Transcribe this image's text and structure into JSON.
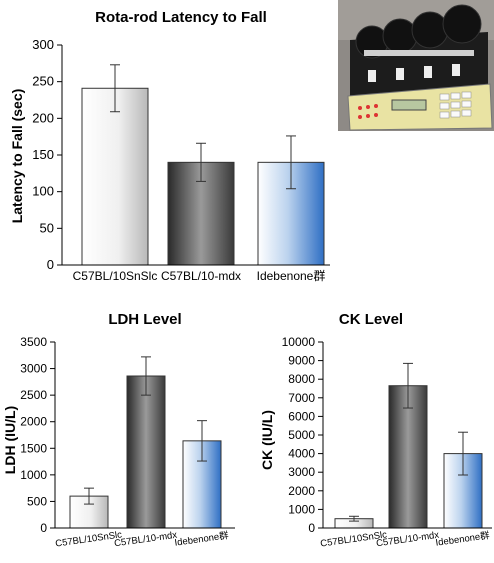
{
  "chart_data": [
    {
      "type": "bar",
      "title": "Rota-rod Latency to Fall",
      "xlabel": "",
      "ylabel": "Latency to Fall (sec)",
      "categories": [
        "C57BL/10SnSlc",
        "C57BL/10-mdx",
        "Idebenone群"
      ],
      "values": [
        241,
        140,
        140
      ],
      "errors": [
        32,
        26,
        36
      ],
      "ylim": [
        0,
        300
      ],
      "yticks": [
        0,
        50,
        100,
        150,
        200,
        250,
        300
      ],
      "bar_styles": [
        "white-gray",
        "black-gray",
        "blue"
      ]
    },
    {
      "type": "bar",
      "title": "LDH Level",
      "xlabel": "",
      "ylabel": "LDH (IU/L)",
      "categories": [
        "C57BL/10SnSlc",
        "C57BL/10-mdx",
        "Idebenone群"
      ],
      "values": [
        600,
        2860,
        1640
      ],
      "errors": [
        150,
        360,
        380
      ],
      "ylim": [
        0,
        3500
      ],
      "yticks": [
        0,
        500,
        1000,
        1500,
        2000,
        2500,
        3000,
        3500
      ],
      "bar_styles": [
        "white-gray",
        "black-gray",
        "blue"
      ]
    },
    {
      "type": "bar",
      "title": "CK Level",
      "xlabel": "",
      "ylabel": "CK (IU/L)",
      "categories": [
        "C57BL/10SnSlc",
        "C57BL/10-mdx",
        "Idebenone群"
      ],
      "values": [
        500,
        7650,
        4000
      ],
      "errors": [
        130,
        1200,
        1150
      ],
      "ylim": [
        0,
        10000
      ],
      "yticks": [
        0,
        1000,
        2000,
        3000,
        4000,
        5000,
        6000,
        7000,
        8000,
        9000,
        10000
      ],
      "bar_styles": [
        "white-gray",
        "black-gray",
        "blue"
      ]
    }
  ],
  "photo": {
    "icon": "rota-rod-apparatus-photo"
  }
}
